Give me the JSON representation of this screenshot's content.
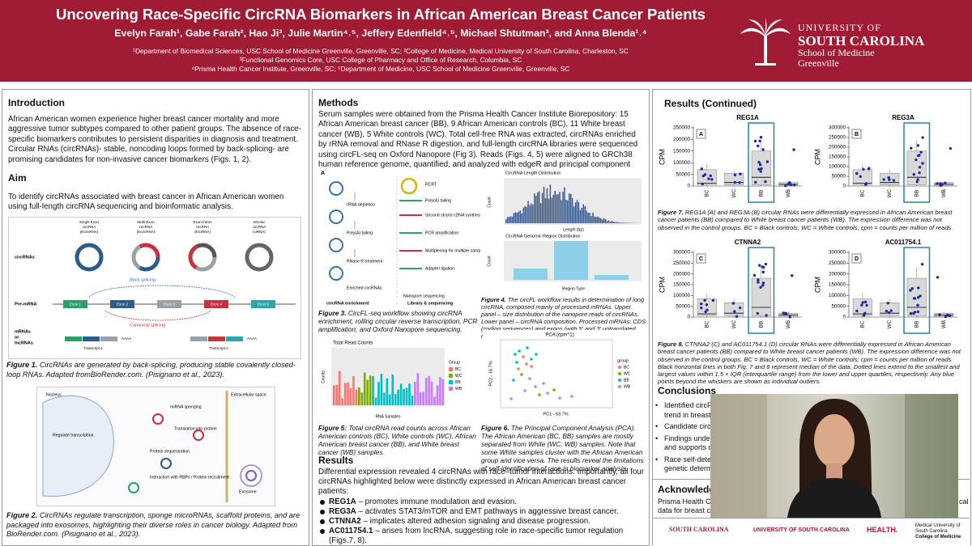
{
  "header": {
    "title": "Uncovering Race-Specific CircRNA Biomarkers in African American Breast Cancer Patients",
    "authors": "Evelyn Farah¹, Gabe Farah², Hao Ji³, Julie Martin⁴˒⁵, Jeffery Edenfield⁴˒⁵, Michael Shtutman³, and Anna Blenda¹˒⁴",
    "affiliations": [
      "¹Department of Biomedical Sciences, USC School of Medicine Greenville, Greenville, SC; ²College of Medicine, Medical University of South Carolina, Charleston, SC",
      "³Functional Genomics Core, USC College of Pharmacy and Office of Research, Columbia, SC",
      "⁴Prisma Health Cancer Institute, Greenville, SC; ⁵Department of Medicine, USC School of Medicine Greenville, Greenville, SC"
    ],
    "logo": [
      "UNIVERSITY OF",
      "SOUTH CAROLINA",
      "School of Medicine",
      "Greenville"
    ]
  },
  "introduction": {
    "heading": "Introduction",
    "text": "African American women experience  higher breast cancer mortality and more aggressive tumor subtypes compared to other patient groups. The absence of race-specific biomarkers contributes to persistent disparities in diagnosis and treatment. Circular RNAs (circRNAs)- stable, noncoding loops formed by back-splicing- are promising candidates for non-invasive cancer biomarkers (Figs. 1, 2)."
  },
  "aim": {
    "heading": "Aim",
    "text": "To identify circRNAs associated with breast cancer in African American women using full-length circRNA sequencing and bioinformatic analysis."
  },
  "figure1": {
    "row_labels": [
      "circRNAs",
      "Pre-mRNA"
    ],
    "mrna_label": [
      "mRNAs",
      "or",
      "lncRNAs"
    ],
    "types": [
      [
        "Single Exon",
        "circRNA",
        "(EcircRNA)"
      ],
      [
        "Multi-Exon",
        "circRNA",
        "(EcircRNA)"
      ],
      [
        "Exon-Intron",
        "circRNA",
        "(EIciRNA)"
      ],
      [
        "Intronic",
        "circRNA",
        "(ciRNA)"
      ]
    ],
    "back_splicing": "Back splicing",
    "canonical_splicing": "Canonical splicing",
    "exons": [
      "Exon 1",
      "Exon 2",
      "Exon 3",
      "Exon 4",
      "Exon 5"
    ],
    "transcripts": [
      "Transcript 1",
      "Transcript 2"
    ],
    "polya": "AAAA",
    "caption": {
      "label": "Figure 1.",
      "text": "CircRNAs are generated by back-splicing, producing stable covalently closed-loop RNAs. Adapted fromBioRender.com. (Pisignano et al., 2023)."
    }
  },
  "figure2": {
    "labels": [
      "Nucleus",
      "Extracellular space",
      "Regulate transcription",
      "miRNA sponging",
      "Translation into protein",
      "Protein sequestration",
      "Exosome",
      "Interaction with RBPs / Protein recruitment"
    ],
    "caption": {
      "label": "Figure 2.",
      "text": "CircRNAs regulate transcription, sponge microRNAs, scaffold proteins, and are packaged into exosomes, highlighting their diverse roles in cancer biology. Adapted from BioRender.com. (Pisignano et al., 2023)."
    }
  },
  "methods": {
    "heading": "Methods",
    "text": "Serum samples were obtained from the Prisma Health Cancer Institute Biorepository: 15 African American breast cancer (BB), 9 African American controls (BC), 11 White breast cancer (WB), 5 White controls (WC).  Total cell-free RNA was extracted, circRNAs enriched by rRNA removal and RNase R digestion, and full-length circRNA libraries were sequenced using circFL-seq on Oxford Nanopore (Fig 3). Reads (Figs. 4, 5) were aligned to GRCh38 human reference genome, quantified, and analyzed with edgeR and principal component analysis (Fig. 6)."
  },
  "figure3": {
    "letter": "A",
    "left_steps": [
      "rRNA depletion",
      "Poly(A) tailing",
      "RNase R treatment",
      "Enriched circRNAs"
    ],
    "right_steps": [
      "RCRT",
      "Poly(A) tailing",
      "Second strand cDNA synthesis",
      "PCR amplification",
      "Multiplexing for multiple samples",
      "Adapter ligation",
      "Nanopore sequencing"
    ],
    "columns": [
      "circRNA enrichment",
      "Library & sequencing"
    ],
    "caption": {
      "label": "Figure 3.",
      "text": "CircFL-seq workflow showing circRNA enrichment, rolling circular reverse transcription, PCR amplification, and Oxford Nanopore sequencing."
    }
  },
  "figure4": {
    "top_title": "CircRNA Length Distribution",
    "top_xlabel": "Length (bp)",
    "ylabel": "Count",
    "bottom_title": "CircRNA Genomic Region Distribution",
    "bottom_xlabel": "Region Type",
    "caption": {
      "label": "Figure 4.",
      "text": "The circFL workflow results in determination of long circRNA, composed mainly of processed mRNAs. Upper panel – size distribution of the nanopore reads of circRNAs. Lower panel – circRNA composition. Processed mRNAs: CDS (coding sequences) and exons (with 5' and 3' untranslated regions);  Non-processed mRNAs: Gene (intronic regions)."
    }
  },
  "figure5": {
    "title": "Total Read Counts",
    "xlabel": "RNA Samples",
    "ylabel": "Counts",
    "legend_title": "Group",
    "groups": [
      "BC",
      "WC",
      "BB",
      "WB"
    ],
    "caption": {
      "label": "Figure 5:",
      "text": "Total circRNA read counts across African American controls (BC), White controls (WC), African American breast cancer (BB), and White breast cancer (WB) samples."
    }
  },
  "figure6": {
    "title": "PCA (cpm^1)",
    "xlabel": "PC1 - 63.7%",
    "ylabel": "PC2 - 16.7%",
    "legend_title": "group",
    "groups": [
      "BC",
      "WC",
      "BB",
      "WB"
    ],
    "caption": {
      "label": "Figure 6.",
      "text": "The Principal Component Analysis (PCA). The African American (BC, BB) samples are mostly separated from White (WC, WB) samples. Note that some White samples cluster with the African American group and vice versa. The results reveal the limitations of self-identification of race in biomarker analysis."
    }
  },
  "results": {
    "heading": "Results",
    "text": "Differential expression revealed 4 circRNAs with race–tumor interactions. Importantly, all four circRNAs highlighted below were distinctly expressed in African American breast cancer patients:",
    "items": [
      {
        "gene": "REG1A",
        "desc": "– promotes immune modulation and evasion."
      },
      {
        "gene": "REG3A",
        "desc": "– activates STAT3/mTOR and EMT pathways in aggressive breast cancer."
      },
      {
        "gene": "CTNNA2",
        "desc": "– implicates altered adhesion signaling and disease progression."
      },
      {
        "gene": "AC011754.1",
        "desc": "– arises from lncRNA, suggesting role in race-specific tumor regulation (Figs.7, 8)."
      }
    ]
  },
  "results_continued": {
    "heading": "Results (Continued)"
  },
  "figure7": {
    "panels": [
      {
        "title": "REG1A",
        "letter": "A",
        "ylabel": "CPM",
        "yticks": [
          0,
          50000,
          100000,
          150000,
          200000,
          250000
        ],
        "categories": [
          "BC",
          "WC",
          "BB",
          "WB"
        ]
      },
      {
        "title": "REG3A",
        "letter": "B",
        "ylabel": "CPM",
        "yticks": [
          0,
          50000,
          100000,
          150000,
          200000,
          250000,
          300000
        ],
        "categories": [
          "BC",
          "WC",
          "BB",
          "WB"
        ]
      }
    ],
    "caption": {
      "label": "Figure 7.",
      "text": "REG1A (A) and REG3A (B) circular RNAs were differentially expressed in African American breast cancer patients (BB) compared to White breast cancer patients (WB). The expression difference was not observed in the control groups. BC = Black controls, WC = White controls; cpm = counts per million of reads."
    }
  },
  "figure8": {
    "panels": [
      {
        "title": "CTNNA2",
        "letter": "C",
        "ylabel": "CPM",
        "yticks": [
          0,
          50000,
          100000,
          150000,
          200000,
          250000,
          300000
        ],
        "categories": [
          "BC",
          "WC",
          "BB",
          "WB"
        ]
      },
      {
        "title": "AC011754.1",
        "letter": "D",
        "ylabel": "CPM",
        "yticks": [
          0,
          50000,
          100000,
          150000,
          200000,
          250000,
          300000
        ],
        "categories": [
          "BC",
          "WC",
          "BB",
          "WB"
        ]
      }
    ],
    "caption": {
      "label": "Figure 8.",
      "text": "CTNNA2 (C) and AC011754.1 (D) circular RNAs were differentially expressed in African American breast cancer patients (BB) compared to White breast cancer patients (WB). The expression difference was not observed in the control groups. BC = Black controls, WC = White controls; cpm = counts per million of reads. Black horizontal lines in both Fig. 7 and 8 represent median of the data. Dotted lines extend to the smallest and largest values within 1.5 × IQR (interquartile range) from the lower and upper quartiles, respectively. Any blue points beyond the whiskers are shown as individual outliers."
    }
  },
  "conclusions": {
    "heading": "Conclusions",
    "bullets": [
      [
        "Identified circF",
        "trend in breast"
      ],
      [
        "Candidate circ"
      ],
      [
        "Findings unde",
        "and supports c"
      ],
      [
        "Race self-dete",
        "genetic determ"
      ]
    ]
  },
  "acknowledgements": {
    "heading": "Acknowledgements",
    "lines": [
      "Prisma Health C",
      "data for breast c"
    ],
    "tail": "cal"
  },
  "footer": {
    "logos": [
      "SOUTH CAROLINA",
      "UNIVERSITY OF SOUTH CAROLINA",
      "HEALTH.",
      "Medical University of South Carolina",
      "College of Medicine"
    ]
  }
}
